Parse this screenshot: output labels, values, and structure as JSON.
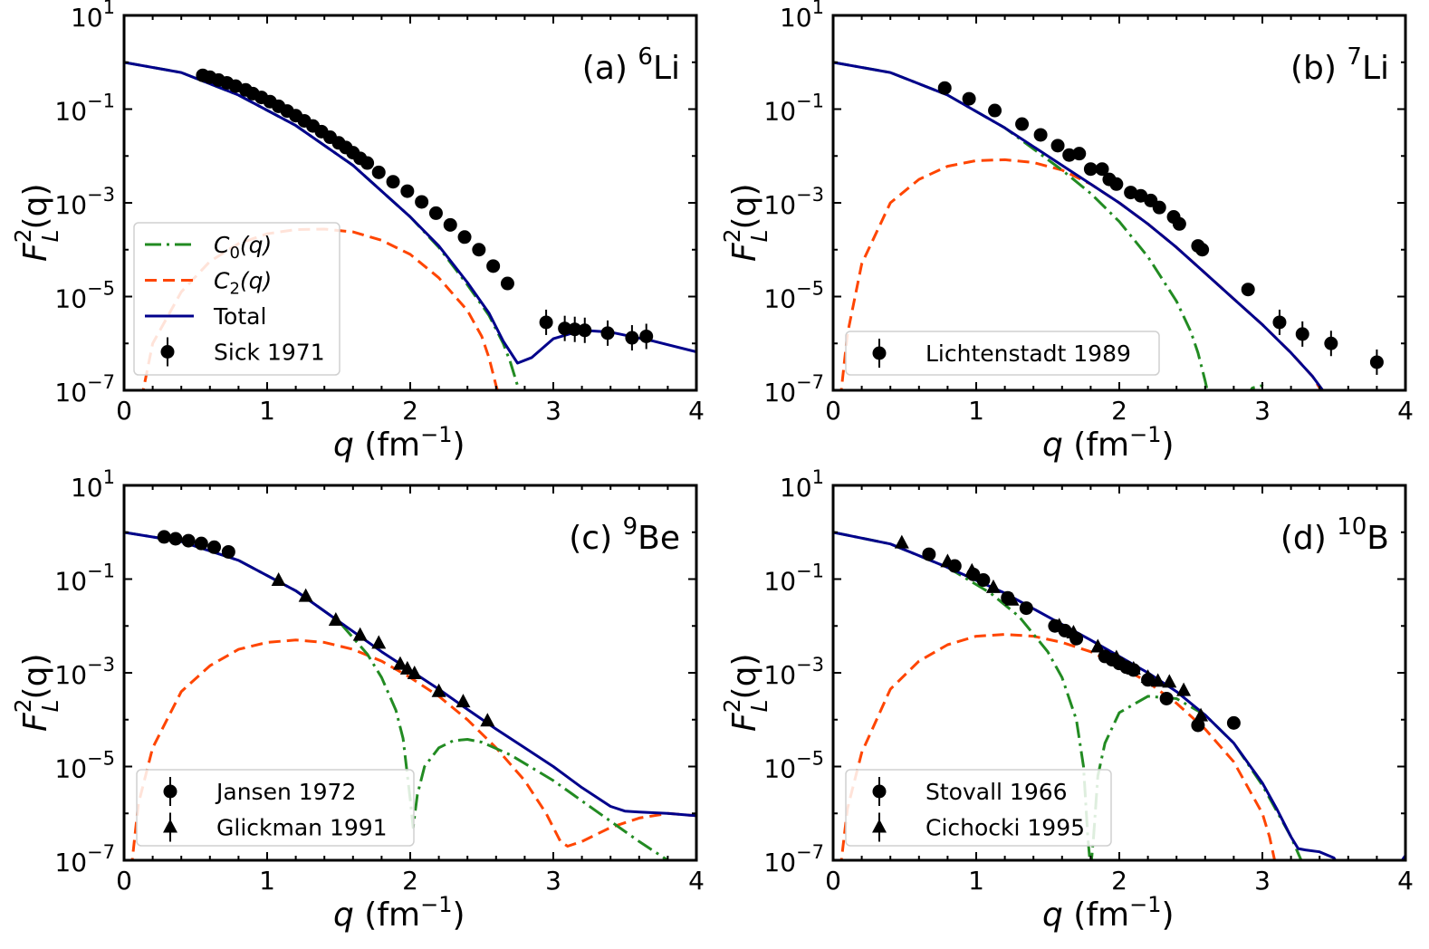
{
  "chart_data": [
    {
      "type": "line",
      "title": "(a) 6Li",
      "title_text": "(a) ",
      "title_sup": "6",
      "title_elem": "Li",
      "xlabel": "q (fm⁻¹)",
      "ylabel": "F_L^2(q)",
      "xlim": [
        0,
        4
      ],
      "ylim_log10": [
        -7,
        1
      ],
      "yscale": "log",
      "legend_position": "lower-left",
      "legend": [
        "C0(q)",
        "C2(q)",
        "Total",
        "Sick 1971"
      ],
      "curves": {
        "C0": {
          "q": [
            0,
            0.4,
            0.8,
            1.2,
            1.6,
            2.0,
            2.2,
            2.4,
            2.55,
            2.65,
            2.7,
            2.75,
            2.8
          ],
          "log10": [
            0,
            -0.22,
            -0.7,
            -1.35,
            -2.2,
            -3.3,
            -3.95,
            -4.75,
            -5.4,
            -6.0,
            -6.4,
            -6.9,
            -7.2
          ]
        },
        "C2": {
          "q": [
            0.12,
            0.2,
            0.4,
            0.6,
            0.8,
            1.0,
            1.2,
            1.4,
            1.6,
            1.8,
            2.0,
            2.2,
            2.4,
            2.5,
            2.55,
            2.6,
            2.63
          ],
          "log10": [
            -7.2,
            -6.0,
            -4.9,
            -4.25,
            -3.87,
            -3.66,
            -3.57,
            -3.56,
            -3.62,
            -3.8,
            -4.1,
            -4.6,
            -5.3,
            -5.85,
            -6.3,
            -6.9,
            -7.2
          ]
        },
        "Total": {
          "q": [
            0,
            0.4,
            0.8,
            1.2,
            1.6,
            2.0,
            2.2,
            2.4,
            2.55,
            2.65,
            2.75,
            2.85,
            3.0,
            3.2,
            3.4,
            3.7,
            4.0
          ],
          "log10": [
            0,
            -0.22,
            -0.7,
            -1.35,
            -2.2,
            -3.3,
            -3.92,
            -4.7,
            -5.35,
            -5.95,
            -6.42,
            -6.3,
            -5.9,
            -5.72,
            -5.76,
            -5.95,
            -6.18
          ]
        }
      },
      "series": [
        {
          "name": "Sick 1971",
          "marker": "circle",
          "q": [
            0.55,
            0.6,
            0.66,
            0.72,
            0.78,
            0.85,
            0.9,
            0.96,
            1.02,
            1.08,
            1.14,
            1.2,
            1.26,
            1.32,
            1.38,
            1.44,
            1.5,
            1.55,
            1.6,
            1.65,
            1.7,
            1.78,
            1.88,
            1.98,
            2.08,
            2.18,
            2.28,
            2.38,
            2.48,
            2.58,
            2.68,
            2.95,
            3.08,
            3.15,
            3.22,
            3.38,
            3.55,
            3.65
          ],
          "log10": [
            -0.28,
            -0.32,
            -0.38,
            -0.44,
            -0.51,
            -0.59,
            -0.67,
            -0.75,
            -0.84,
            -0.94,
            -1.04,
            -1.14,
            -1.25,
            -1.36,
            -1.48,
            -1.6,
            -1.72,
            -1.82,
            -1.93,
            -2.05,
            -2.15,
            -2.35,
            -2.55,
            -2.75,
            -2.98,
            -3.22,
            -3.47,
            -3.73,
            -4.0,
            -4.35,
            -4.72,
            -5.55,
            -5.68,
            -5.7,
            -5.72,
            -5.78,
            -5.88,
            -5.85
          ]
        }
      ]
    },
    {
      "type": "line",
      "title": "(b) 7Li",
      "title_text": "(b) ",
      "title_sup": "7",
      "title_elem": "Li",
      "xlabel": "q (fm⁻¹)",
      "ylabel": "F_L^2(q)",
      "xlim": [
        0,
        4
      ],
      "ylim_log10": [
        -7,
        1
      ],
      "yscale": "log",
      "legend_position": "lower-left",
      "legend": [
        "Lichtenstadt 1989"
      ],
      "curves": {
        "C0": {
          "q": [
            0,
            0.4,
            0.8,
            1.2,
            1.6,
            1.8,
            2.0,
            2.2,
            2.4,
            2.5,
            2.55,
            2.6,
            2.63
          ],
          "log10": [
            0,
            -0.22,
            -0.7,
            -1.4,
            -2.3,
            -2.8,
            -3.4,
            -4.15,
            -5.1,
            -5.75,
            -6.2,
            -6.8,
            -7.2
          ],
          "tail_q": [
            2.88,
            2.93,
            3.0,
            3.05
          ],
          "tail_log10": [
            -7.2,
            -6.95,
            -6.9,
            -7.2
          ]
        },
        "C2": {
          "q": [
            0.05,
            0.1,
            0.2,
            0.4,
            0.6,
            0.8,
            1.0,
            1.2,
            1.4,
            1.6,
            1.8,
            2.0,
            2.2,
            2.4,
            2.6,
            2.8,
            3.0,
            3.2,
            3.35,
            3.45
          ],
          "log10": [
            -7.2,
            -5.8,
            -4.3,
            -3.0,
            -2.5,
            -2.22,
            -2.1,
            -2.08,
            -2.14,
            -2.3,
            -2.6,
            -3.0,
            -3.45,
            -3.95,
            -4.5,
            -5.05,
            -5.6,
            -6.2,
            -6.7,
            -7.2
          ]
        },
        "Total": {
          "q": [
            0,
            0.4,
            0.8,
            1.2,
            1.6,
            1.8,
            2.0,
            2.2,
            2.4,
            2.6,
            2.8,
            3.0,
            3.2,
            3.35,
            3.47
          ],
          "log10": [
            0,
            -0.22,
            -0.7,
            -1.4,
            -2.2,
            -2.6,
            -3.0,
            -3.45,
            -3.95,
            -4.5,
            -5.05,
            -5.6,
            -6.2,
            -6.7,
            -7.2
          ]
        }
      },
      "series": [
        {
          "name": "Lichtenstadt 1989",
          "marker": "circle",
          "q": [
            0.78,
            0.95,
            1.13,
            1.32,
            1.45,
            1.57,
            1.65,
            1.72,
            1.8,
            1.88,
            1.93,
            1.98,
            2.08,
            2.15,
            2.22,
            2.28,
            2.38,
            2.42,
            2.55,
            2.58,
            2.9,
            3.12,
            3.28,
            3.48,
            3.8
          ],
          "log10": [
            -0.55,
            -0.78,
            -1.03,
            -1.32,
            -1.55,
            -1.78,
            -1.98,
            -1.95,
            -2.28,
            -2.28,
            -2.5,
            -2.6,
            -2.78,
            -2.85,
            -2.95,
            -3.1,
            -3.3,
            -3.45,
            -3.92,
            -4.0,
            -4.85,
            -5.55,
            -5.8,
            -6.0,
            -6.4
          ]
        }
      ]
    },
    {
      "type": "line",
      "title": "(c) 9Be",
      "title_text": "(c) ",
      "title_sup": "9",
      "title_elem": "Be",
      "xlabel": "q (fm⁻¹)",
      "ylabel": "F_L^2(q)",
      "xlim": [
        0,
        4
      ],
      "ylim_log10": [
        -7,
        1
      ],
      "yscale": "log",
      "legend_position": "lower-left",
      "legend": [
        "Jansen 1972",
        "Glickman 1991"
      ],
      "curves": {
        "C0": {
          "q": [
            0,
            0.4,
            0.8,
            1.2,
            1.5,
            1.7,
            1.8,
            1.9,
            1.95,
            2.0,
            2.02,
            2.05,
            2.1,
            2.2,
            2.3,
            2.4,
            2.5,
            2.7,
            3.0,
            3.3,
            3.6,
            3.8,
            3.9
          ],
          "log10": [
            0,
            -0.2,
            -0.6,
            -1.25,
            -1.9,
            -2.6,
            -3.1,
            -3.8,
            -4.4,
            -5.7,
            -6.3,
            -5.6,
            -5.0,
            -4.6,
            -4.45,
            -4.42,
            -4.48,
            -4.75,
            -5.3,
            -5.95,
            -6.6,
            -7.0,
            -7.2
          ]
        },
        "C2": {
          "q": [
            0.05,
            0.1,
            0.2,
            0.4,
            0.6,
            0.8,
            1.0,
            1.2,
            1.4,
            1.6,
            1.8,
            2.0,
            2.2,
            2.4,
            2.6,
            2.8,
            2.95,
            3.05,
            3.1,
            3.2,
            3.4,
            3.6,
            3.8,
            4.0
          ],
          "log10": [
            -7.2,
            -5.8,
            -4.6,
            -3.4,
            -2.85,
            -2.5,
            -2.35,
            -2.3,
            -2.35,
            -2.5,
            -2.75,
            -3.1,
            -3.5,
            -4.0,
            -4.6,
            -5.3,
            -6.0,
            -6.6,
            -6.7,
            -6.6,
            -6.3,
            -6.1,
            -6.0,
            -6.05
          ]
        },
        "Total": {
          "q": [
            0,
            0.4,
            0.8,
            1.2,
            1.5,
            1.8,
            2.0,
            2.2,
            2.4,
            2.6,
            2.8,
            3.0,
            3.2,
            3.4,
            3.5,
            3.6,
            3.8,
            4.0
          ],
          "log10": [
            0,
            -0.2,
            -0.6,
            -1.25,
            -1.9,
            -2.55,
            -2.95,
            -3.35,
            -3.78,
            -4.2,
            -4.6,
            -5.0,
            -5.45,
            -5.85,
            -5.95,
            -5.97,
            -6.0,
            -6.05
          ]
        }
      },
      "series": [
        {
          "name": "Jansen 1972",
          "marker": "circle",
          "q": [
            0.28,
            0.36,
            0.45,
            0.54,
            0.63,
            0.73
          ],
          "log10": [
            -0.1,
            -0.14,
            -0.18,
            -0.24,
            -0.32,
            -0.42
          ]
        },
        {
          "name": "Glickman 1991",
          "marker": "triangle",
          "q": [
            1.08,
            1.27,
            1.48,
            1.65,
            1.78,
            1.93,
            1.98,
            2.03,
            2.2,
            2.37,
            2.54
          ],
          "log10": [
            -1.03,
            -1.37,
            -1.88,
            -2.2,
            -2.37,
            -2.82,
            -2.92,
            -3.02,
            -3.4,
            -3.62,
            -4.03
          ]
        }
      ]
    },
    {
      "type": "line",
      "title": "(d) 10B",
      "title_text": "(d) ",
      "title_sup": "10",
      "title_elem": "B",
      "xlabel": "q (fm⁻¹)",
      "ylabel": "F_L^2(q)",
      "xlim": [
        0,
        4
      ],
      "ylim_log10": [
        -7,
        1
      ],
      "yscale": "log",
      "legend_position": "lower-left",
      "legend": [
        "Stovall 1966",
        "Cichocki 1995"
      ],
      "curves": {
        "C0": {
          "q": [
            0,
            0.4,
            0.8,
            1.1,
            1.3,
            1.5,
            1.6,
            1.7,
            1.75,
            1.78,
            1.8,
            1.82,
            1.85,
            1.9,
            2.0,
            2.2,
            2.4,
            2.6,
            2.8,
            3.0,
            3.2,
            3.3
          ],
          "log10": [
            0,
            -0.25,
            -0.75,
            -1.3,
            -1.8,
            -2.55,
            -3.1,
            -4.0,
            -5.0,
            -6.5,
            -7.2,
            -6.5,
            -5.2,
            -4.5,
            -3.85,
            -3.5,
            -3.55,
            -3.9,
            -4.5,
            -5.4,
            -6.5,
            -7.2
          ]
        },
        "C2": {
          "q": [
            0.05,
            0.1,
            0.2,
            0.4,
            0.6,
            0.8,
            1.0,
            1.2,
            1.4,
            1.6,
            1.8,
            2.0,
            2.2,
            2.4,
            2.6,
            2.8,
            3.0,
            3.05,
            3.1
          ],
          "log10": [
            -7.2,
            -5.9,
            -4.7,
            -3.35,
            -2.75,
            -2.4,
            -2.22,
            -2.18,
            -2.22,
            -2.35,
            -2.55,
            -2.85,
            -3.2,
            -3.65,
            -4.2,
            -4.9,
            -6.0,
            -6.5,
            -7.2
          ],
          "tail_q": [
            3.28,
            3.35,
            3.42
          ],
          "tail_log10": [
            -7.2,
            -6.95,
            -7.2
          ]
        },
        "Total": {
          "q": [
            0,
            0.4,
            0.8,
            1.2,
            1.5,
            1.8,
            2.0,
            2.2,
            2.4,
            2.6,
            2.8,
            3.0,
            3.1,
            3.2,
            3.25,
            3.3,
            3.4,
            3.5,
            3.55
          ],
          "log10": [
            0,
            -0.25,
            -0.75,
            -1.3,
            -1.8,
            -2.3,
            -2.65,
            -3.0,
            -3.4,
            -3.9,
            -4.5,
            -5.35,
            -5.9,
            -6.5,
            -6.75,
            -6.78,
            -6.82,
            -6.95,
            -7.2
          ],
          "tail_q": [
            3.93,
            4.0
          ],
          "tail_log10": [
            -7.2,
            -6.9
          ]
        }
      },
      "series": [
        {
          "name": "Stovall 1966",
          "marker": "circle",
          "q": [
            0.67,
            0.85,
            0.98,
            1.05,
            1.22,
            1.35,
            1.55,
            1.62,
            1.7,
            1.9,
            1.95,
            2.0,
            2.05,
            2.1,
            2.2,
            2.33,
            2.55,
            2.8
          ],
          "log10": [
            -0.47,
            -0.72,
            -0.9,
            -1.02,
            -1.4,
            -1.62,
            -2.0,
            -2.1,
            -2.27,
            -2.65,
            -2.72,
            -2.8,
            -2.88,
            -2.94,
            -3.15,
            -3.55,
            -4.12,
            -4.07
          ]
        },
        {
          "name": "Cichocki 1995",
          "marker": "triangle",
          "q": [
            0.48,
            0.8,
            0.97,
            1.12,
            1.25,
            1.58,
            1.68,
            1.85,
            1.98,
            2.1,
            2.2,
            2.27,
            2.35,
            2.45,
            2.57
          ],
          "log10": [
            -0.23,
            -0.63,
            -0.83,
            -1.18,
            -1.45,
            -2.0,
            -2.15,
            -2.45,
            -2.68,
            -2.92,
            -3.1,
            -3.18,
            -3.2,
            -3.38,
            -3.92
          ]
        }
      ]
    }
  ],
  "axis": {
    "x_ticks": [
      "0",
      "1",
      "2",
      "3",
      "4"
    ],
    "y_ticks": [
      {
        "base": "10",
        "exp": "1"
      },
      {
        "base": "10",
        "exp": "−1"
      },
      {
        "base": "10",
        "exp": "−3"
      },
      {
        "base": "10",
        "exp": "−5"
      },
      {
        "base": "10",
        "exp": "−7"
      }
    ],
    "xlabel_q": "q",
    "xlabel_unit": " (fm",
    "xlabel_exp": "−1",
    "xlabel_close": ")",
    "ylabel_F": "F",
    "ylabel_sup": "2",
    "ylabel_sub": "L",
    "ylabel_arg": "(q)"
  },
  "legend_labels": {
    "c0_main": "C",
    "c0_sub": "0",
    "c0_arg": "(q)",
    "c2_main": "C",
    "c2_sub": "2",
    "c2_arg": "(q)",
    "total": "Total"
  },
  "colors": {
    "c0": "#228b22",
    "c2": "#ff4500",
    "total": "#00008b",
    "data": "#000000"
  }
}
